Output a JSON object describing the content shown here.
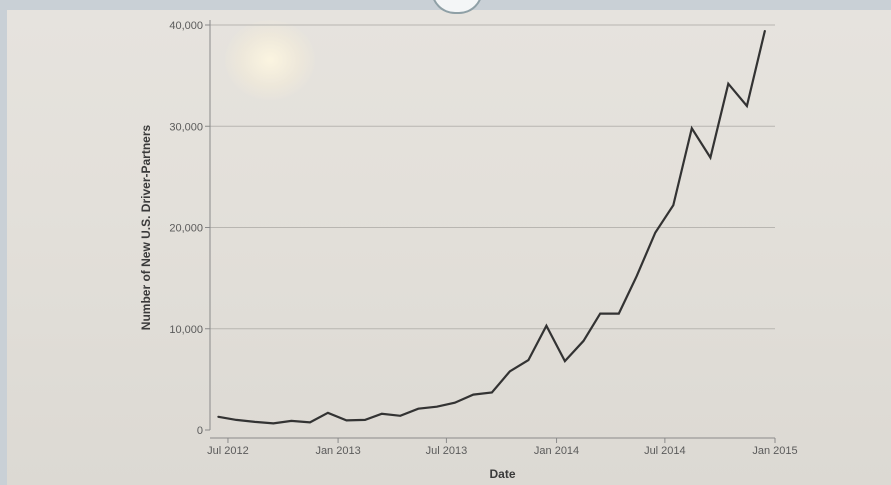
{
  "chart_data": {
    "type": "line",
    "title": "",
    "xlabel": "Date",
    "ylabel": "Number of New U.S. Driver-Partners",
    "ylim": [
      0,
      40000
    ],
    "xlim": [
      "2012-06-01",
      "2015-01-01"
    ],
    "y_ticks": [
      {
        "value": 0,
        "label": "0"
      },
      {
        "value": 10000,
        "label": "10,000"
      },
      {
        "value": 20000,
        "label": "20,000"
      },
      {
        "value": 30000,
        "label": "30,000"
      },
      {
        "value": 40000,
        "label": "40,000"
      }
    ],
    "x_ticks": [
      {
        "value": "2012-07-01",
        "label": "Jul 2012"
      },
      {
        "value": "2013-01-01",
        "label": "Jan 2013"
      },
      {
        "value": "2013-07-01",
        "label": "Jul 2013"
      },
      {
        "value": "2014-01-01",
        "label": "Jan 2014"
      },
      {
        "value": "2014-07-01",
        "label": "Jul 2014"
      },
      {
        "value": "2015-01-01",
        "label": "Jan 2015"
      }
    ],
    "grid": "horizontal",
    "line_color": "#333333",
    "series": [
      {
        "points": [
          {
            "x": "2012-06-15",
            "y": 1300
          },
          {
            "x": "2012-07-15",
            "y": 1000
          },
          {
            "x": "2012-08-15",
            "y": 800
          },
          {
            "x": "2012-09-15",
            "y": 650
          },
          {
            "x": "2012-10-15",
            "y": 900
          },
          {
            "x": "2012-11-15",
            "y": 750
          },
          {
            "x": "2012-12-15",
            "y": 1700
          },
          {
            "x": "2013-01-15",
            "y": 950
          },
          {
            "x": "2013-02-15",
            "y": 1000
          },
          {
            "x": "2013-03-15",
            "y": 1600
          },
          {
            "x": "2013-04-15",
            "y": 1400
          },
          {
            "x": "2013-05-15",
            "y": 2100
          },
          {
            "x": "2013-06-15",
            "y": 2300
          },
          {
            "x": "2013-07-15",
            "y": 2700
          },
          {
            "x": "2013-08-15",
            "y": 3500
          },
          {
            "x": "2013-09-15",
            "y": 3700
          },
          {
            "x": "2013-10-15",
            "y": 5800
          },
          {
            "x": "2013-11-15",
            "y": 6900
          },
          {
            "x": "2013-12-15",
            "y": 10300
          },
          {
            "x": "2014-01-15",
            "y": 6800
          },
          {
            "x": "2014-02-15",
            "y": 8800
          },
          {
            "x": "2014-03-15",
            "y": 11500
          },
          {
            "x": "2014-04-15",
            "y": 11500
          },
          {
            "x": "2014-05-15",
            "y": 15200
          },
          {
            "x": "2014-06-15",
            "y": 19500
          },
          {
            "x": "2014-07-15",
            "y": 22200
          },
          {
            "x": "2014-08-15",
            "y": 29800
          },
          {
            "x": "2014-09-15",
            "y": 26900
          },
          {
            "x": "2014-10-15",
            "y": 34200
          },
          {
            "x": "2014-11-15",
            "y": 32000
          },
          {
            "x": "2014-12-15",
            "y": 39400
          }
        ]
      }
    ]
  }
}
